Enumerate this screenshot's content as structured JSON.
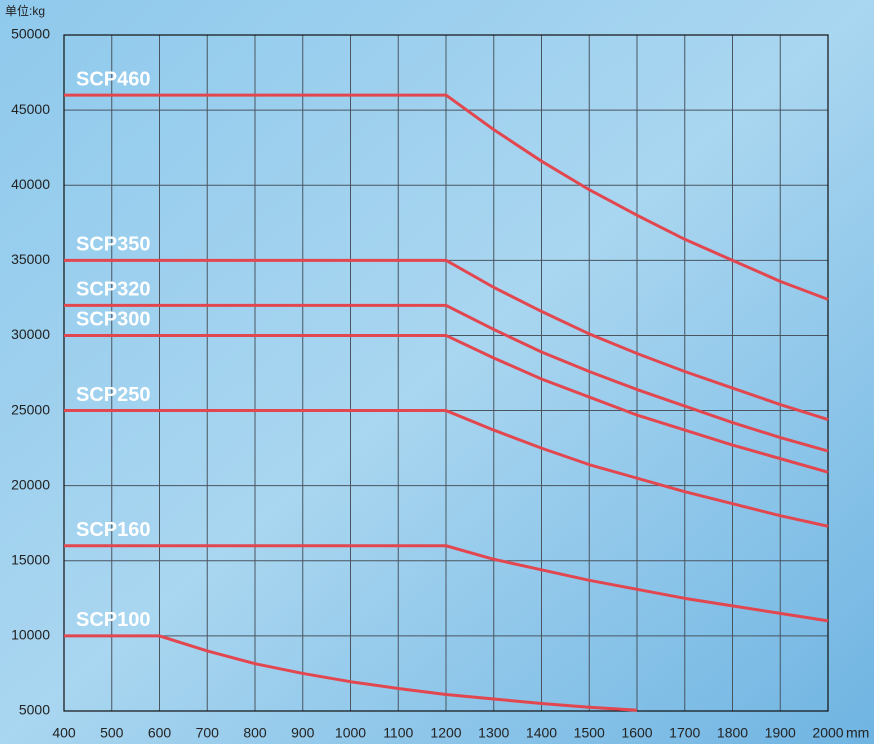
{
  "chart_data": {
    "type": "line",
    "unit_label": "单位:kg",
    "x_unit": "mm",
    "x": [
      400,
      500,
      600,
      700,
      800,
      900,
      1000,
      1100,
      1200,
      1300,
      1400,
      1500,
      1600,
      1700,
      1800,
      1900,
      2000
    ],
    "xlim": [
      400,
      2000
    ],
    "xticks": [
      400,
      500,
      600,
      700,
      800,
      900,
      1000,
      1100,
      1200,
      1300,
      1400,
      1500,
      1600,
      1700,
      1800,
      1900,
      2000
    ],
    "ylim": [
      5000,
      50000
    ],
    "yticks": [
      5000,
      10000,
      15000,
      20000,
      25000,
      30000,
      35000,
      40000,
      45000,
      50000
    ],
    "grid": true,
    "series": [
      {
        "name": "SCP460",
        "color": "#e2474f",
        "values": [
          46000,
          46000,
          46000,
          46000,
          46000,
          46000,
          46000,
          46000,
          46000,
          43700,
          41600,
          39700,
          38000,
          36400,
          35000,
          33600,
          32400
        ]
      },
      {
        "name": "SCP350",
        "color": "#e2474f",
        "values": [
          35000,
          35000,
          35000,
          35000,
          35000,
          35000,
          35000,
          35000,
          35000,
          33200,
          31600,
          30100,
          28800,
          27600,
          26500,
          25400,
          24400
        ]
      },
      {
        "name": "SCP320",
        "color": "#e2474f",
        "values": [
          32000,
          32000,
          32000,
          32000,
          32000,
          32000,
          32000,
          32000,
          32000,
          30400,
          28900,
          27600,
          26400,
          25300,
          24200,
          23200,
          22300
        ]
      },
      {
        "name": "SCP300",
        "color": "#e2474f",
        "values": [
          30000,
          30000,
          30000,
          30000,
          30000,
          30000,
          30000,
          30000,
          30000,
          28500,
          27100,
          25900,
          24700,
          23700,
          22700,
          21800,
          20900
        ]
      },
      {
        "name": "SCP250",
        "color": "#e2474f",
        "values": [
          25000,
          25000,
          25000,
          25000,
          25000,
          25000,
          25000,
          25000,
          25000,
          23700,
          22500,
          21400,
          20500,
          19600,
          18800,
          18000,
          17300
        ]
      },
      {
        "name": "SCP160",
        "color": "#e2474f",
        "values": [
          16000,
          16000,
          16000,
          16000,
          16000,
          16000,
          16000,
          16000,
          16000,
          15100,
          14400,
          13700,
          13100,
          12500,
          12000,
          11500,
          11000
        ]
      },
      {
        "name": "SCP100",
        "color": "#e2474f",
        "values": [
          10000,
          10000,
          10000,
          9000,
          8150,
          7500,
          6950,
          6500,
          6100,
          5800,
          5500,
          5250,
          5050,
          null,
          null,
          null,
          null
        ]
      }
    ]
  }
}
